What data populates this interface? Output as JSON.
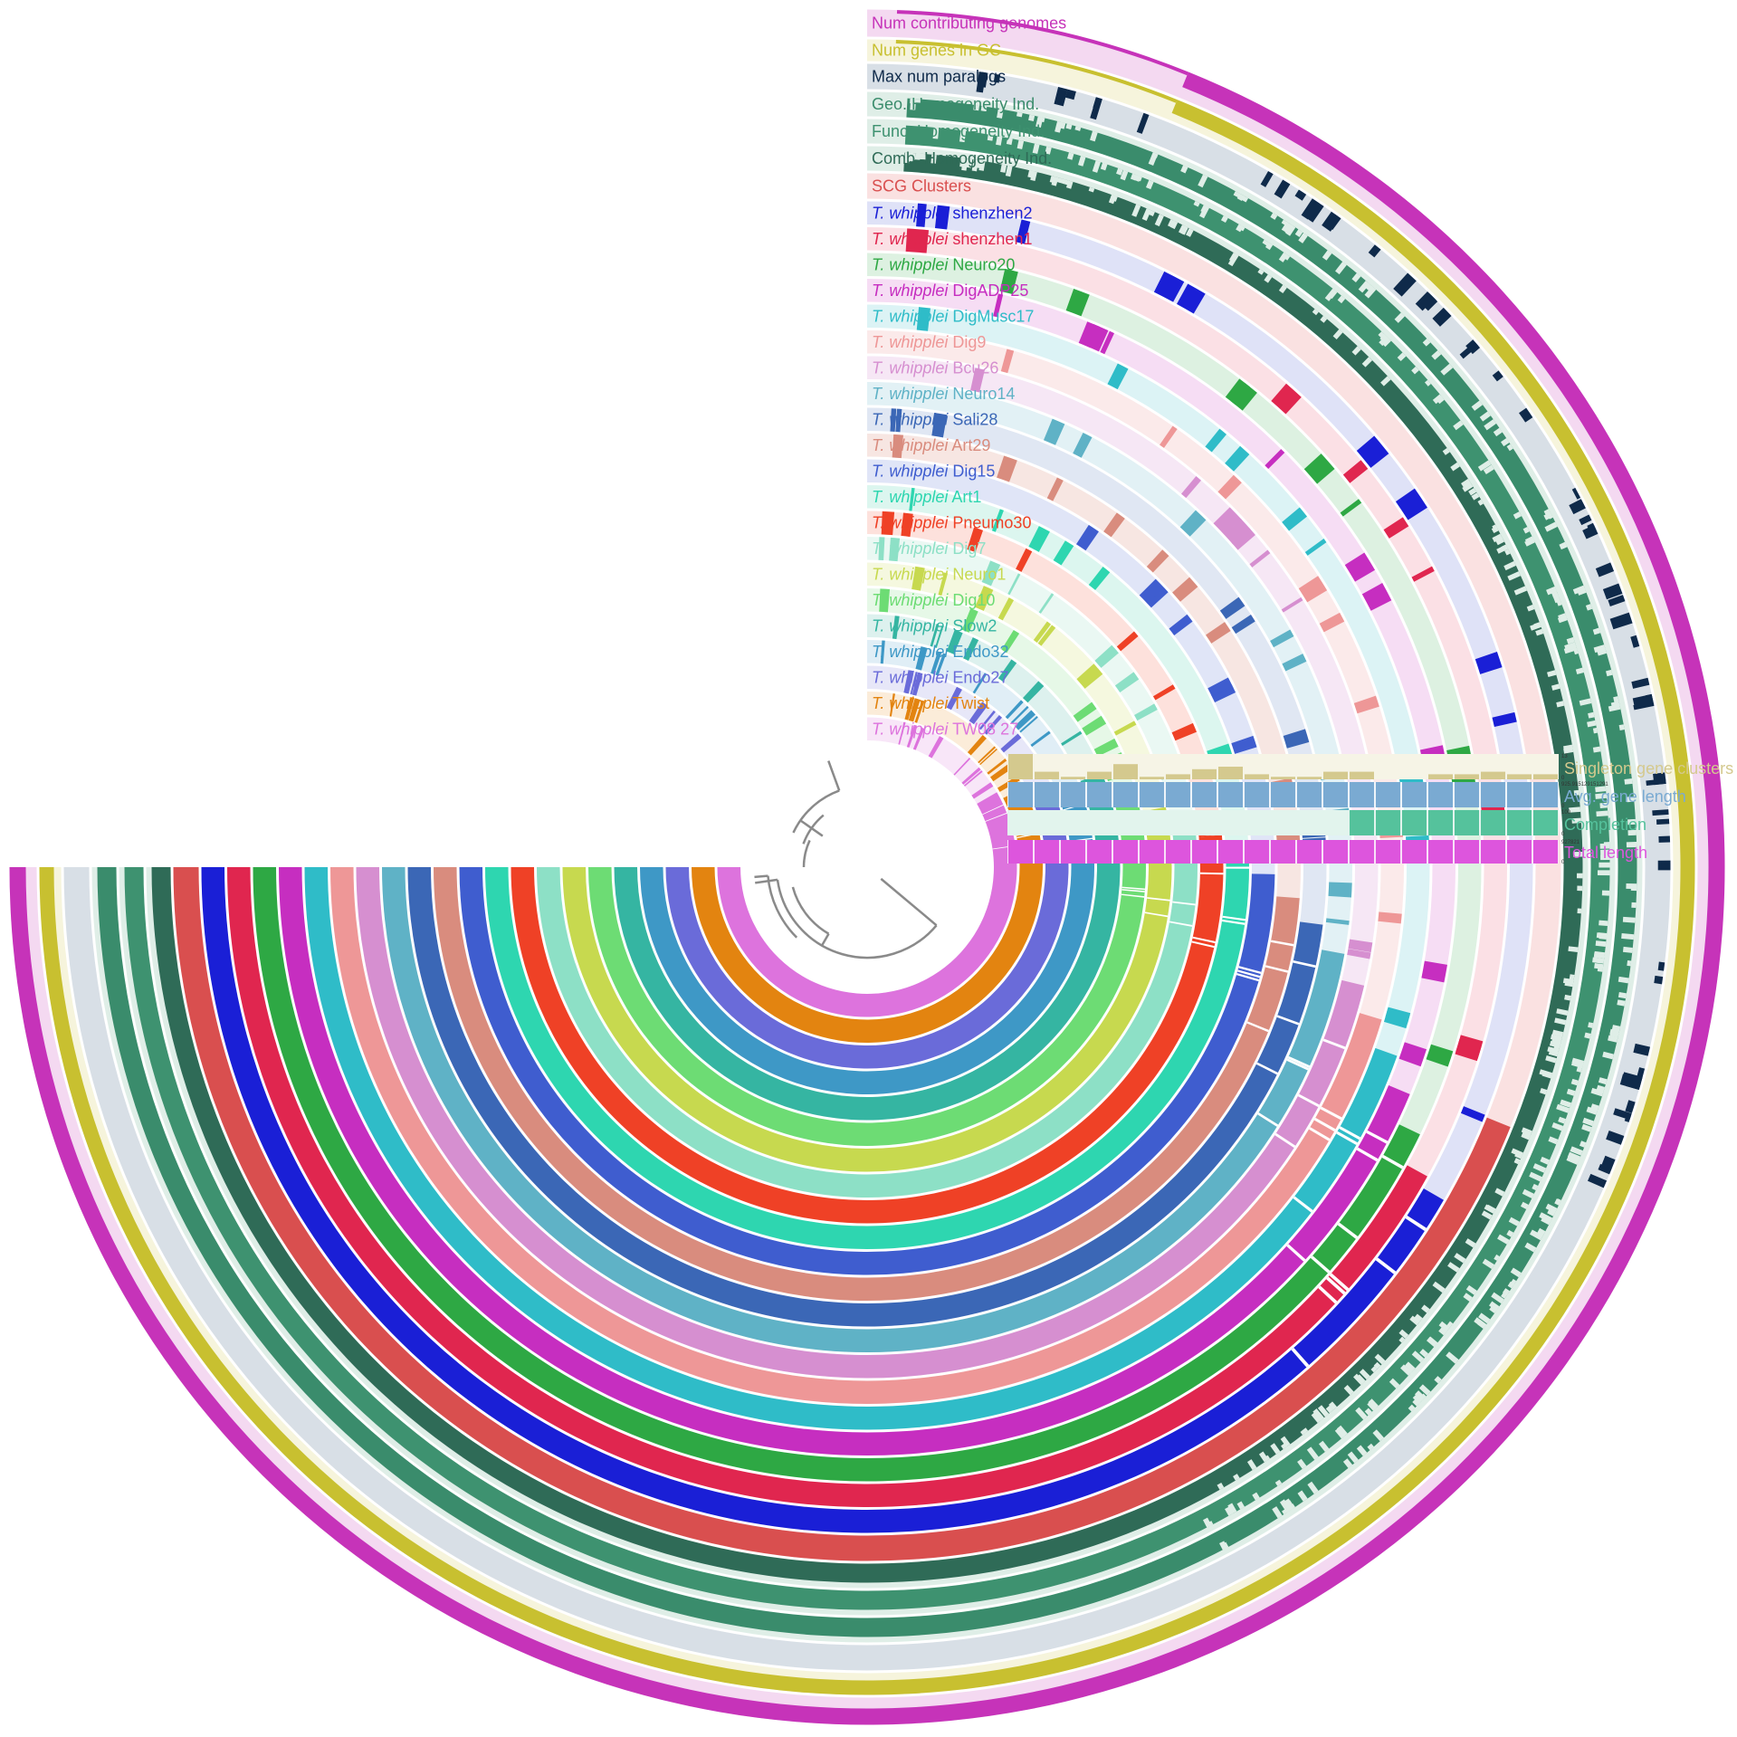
{
  "layers": [
    {
      "label": "Num contributing genomes",
      "color": "#c633b9",
      "bg": "#f4d9f1"
    },
    {
      "label": "Num genes in GC",
      "color": "#c8c030",
      "bg": "#f6f4dc"
    },
    {
      "label": "Max num paralogs",
      "color": "#0f2a4a",
      "bg": "#d8dfe6"
    },
    {
      "label": "Geo. Homogeneity Ind.",
      "color": "#3a8c6c",
      "bg": "#dfeee7"
    },
    {
      "label": "Func. Homogeneity Ind.",
      "color": "#3e9270",
      "bg": "#dfeee7"
    },
    {
      "label": "Comb. Homogeneity Ind.",
      "color": "#2f6b57",
      "bg": "#dfeee7"
    },
    {
      "label": "SCG Clusters",
      "color": "#d94f4f",
      "bg": "#fae1e1"
    }
  ],
  "genomes": [
    {
      "label": "shenzhen2",
      "color": "#1a1fd6",
      "bg": "#dfe2f7"
    },
    {
      "label": "shenzhen1",
      "color": "#e0264f",
      "bg": "#fbe0e5"
    },
    {
      "label": "Neuro20",
      "color": "#2ea844",
      "bg": "#ddf1e1"
    },
    {
      "label": "DigADP25",
      "color": "#c62ec0",
      "bg": "#f6ddf4"
    },
    {
      "label": "DigMusc17",
      "color": "#2fbcc8",
      "bg": "#dcf3f5"
    },
    {
      "label": "Dig9",
      "color": "#ee9797",
      "bg": "#fbeaea"
    },
    {
      "label": "Bcu26",
      "color": "#d68fd0",
      "bg": "#f6e7f5"
    },
    {
      "label": "Neuro14",
      "color": "#5fb2c6",
      "bg": "#e2f1f5"
    },
    {
      "label": "Sali28",
      "color": "#3b67b6",
      "bg": "#e0e7f3"
    },
    {
      "label": "Art29",
      "color": "#d98c7e",
      "bg": "#f7e6e2"
    },
    {
      "label": "Dig15",
      "color": "#3f5dcf",
      "bg": "#e0e5f7"
    },
    {
      "label": "Art1",
      "color": "#2ed6b0",
      "bg": "#dcf6ef"
    },
    {
      "label": "Pneumo30",
      "color": "#ef4126",
      "bg": "#fde1dc"
    },
    {
      "label": "Dig7",
      "color": "#8de0c6",
      "bg": "#eaf8f3"
    },
    {
      "label": "Neuro1",
      "color": "#c7d94f",
      "bg": "#f5f8df"
    },
    {
      "label": "Dig10",
      "color": "#6ddc74",
      "bg": "#e6f8e7"
    },
    {
      "label": "Slow2",
      "color": "#35b5a2",
      "bg": "#ddf1ee"
    },
    {
      "label": "Endo32",
      "color": "#3e98c6",
      "bg": "#e0eef6"
    },
    {
      "label": "Endo27",
      "color": "#6a6bd9",
      "bg": "#e7e7f8"
    },
    {
      "label": "Twist",
      "color": "#e38410",
      "bg": "#fbecd9"
    },
    {
      "label": "TW08 27",
      "color": "#dd73dd",
      "bg": "#f8e6f8"
    }
  ],
  "species": "T. whipplei",
  "bar_layers": [
    {
      "label": "Singleton gene clusters",
      "color": "#d4c98e",
      "bg": "#f6f4e6",
      "max": "13",
      "min": "0"
    },
    {
      "label": "Avg. gene length",
      "color": "#7aaad2",
      "bg": "#eef4fa",
      "max": "925.915129151291",
      "min": "0"
    },
    {
      "label": "Completion",
      "color": "#55c29c",
      "bg": "#e2f4ed",
      "max": "100",
      "min": "0"
    },
    {
      "label": "Total length",
      "color": "#dd55dd",
      "bg": "#f8e1f8",
      "max": "927821",
      "min": "0"
    }
  ],
  "bar_values": {
    "singleton": [
      10,
      3,
      1,
      3,
      6,
      1,
      2,
      4,
      5,
      2,
      1,
      1,
      3,
      3,
      0,
      0,
      2,
      2,
      3,
      2,
      2
    ],
    "avg_gene_length": [
      1,
      1,
      1,
      1,
      1,
      1,
      1,
      1,
      1,
      1,
      1,
      1,
      1,
      1,
      1,
      1,
      1,
      1,
      1,
      1,
      1
    ],
    "completion": [
      1,
      1,
      1,
      1,
      1,
      1,
      1,
      1,
      1,
      1,
      1,
      1,
      1,
      1,
      1,
      1,
      1,
      1,
      1,
      1,
      1
    ],
    "completion_highlight_from": 13,
    "total_length": [
      1,
      1,
      1,
      1,
      1,
      1,
      1,
      1,
      1,
      1,
      1,
      1,
      1,
      1,
      1,
      1,
      1,
      1,
      1,
      1,
      1
    ]
  },
  "colors": {
    "tree": "#8a8a8a",
    "background": "#ffffff"
  }
}
